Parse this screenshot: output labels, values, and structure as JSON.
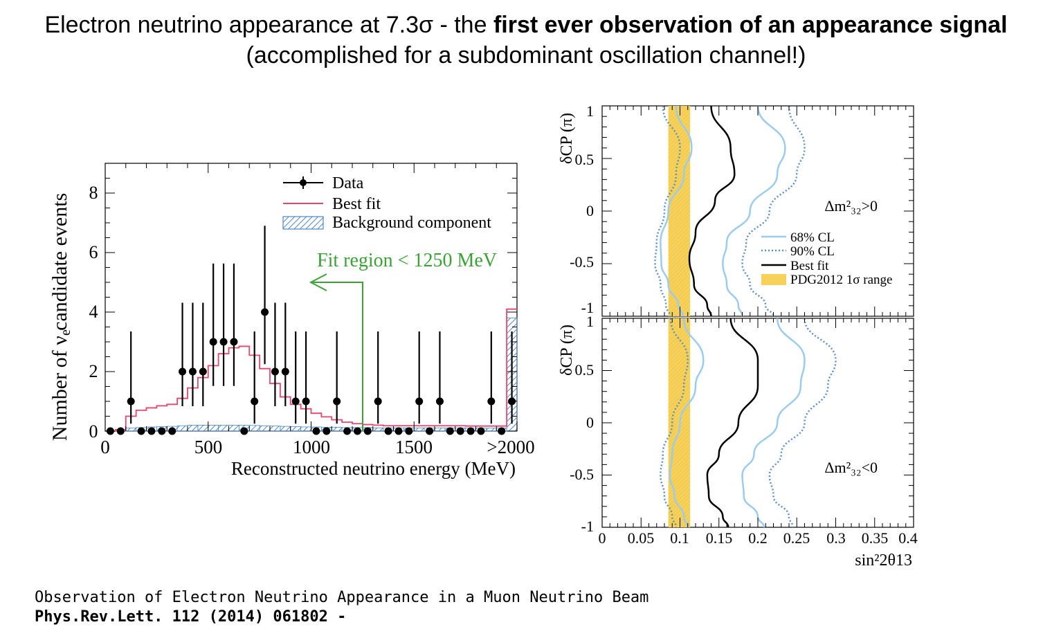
{
  "slide": {
    "title_line1_plain": "Electron neutrino appearance at 7.3σ - the ",
    "title_line1_bold": "first ever observation of an appearance signal",
    "title_line2": "(accomplished for a subdominant oscillation channel!)",
    "caption_line1": "Observation of Electron Neutrino Appearance in a Muon Neutrino Beam",
    "caption_line2": "Phys.Rev.Lett. 112 (2014) 061802 -"
  },
  "colors": {
    "best_fit_hist": "#e8456e",
    "background_hatch": "#4a86c8",
    "fit_region": "#3aa235",
    "cl68": "#9ccbf0",
    "cl90": "#5b8fc7",
    "pdg_band": "#f6d25a"
  },
  "chart_data": [
    {
      "type": "bar",
      "xlabel": "Reconstructed neutrino energy (MeV)",
      "ylabel": "Number of ν candidate events",
      "ylabel_sub": "e",
      "xlim": [
        0,
        2000
      ],
      "ylim": [
        0,
        9
      ],
      "x_ticks": [
        "0",
        "500",
        "1000",
        "1500",
        ">2000"
      ],
      "y_ticks": [
        "0",
        "2",
        "4",
        "6",
        "8"
      ],
      "legend": [
        "Data",
        "Best fit",
        "Background component"
      ],
      "legend_position": "top-right",
      "annotation": "Fit region < 1250 MeV",
      "bin_width": 50,
      "data": {
        "x": [
          25,
          75,
          125,
          175,
          225,
          275,
          325,
          375,
          425,
          475,
          525,
          575,
          625,
          675,
          725,
          775,
          825,
          875,
          925,
          975,
          1025,
          1075,
          1125,
          1175,
          1225,
          1275,
          1325,
          1375,
          1425,
          1475,
          1525,
          1575,
          1625,
          1675,
          1725,
          1775,
          1825,
          1875,
          1925,
          1975
        ],
        "y": [
          0,
          0,
          1,
          0,
          0,
          0,
          0,
          2,
          2,
          2,
          3,
          3,
          3,
          0,
          1,
          4,
          2,
          2,
          1,
          1,
          0,
          0,
          1,
          0,
          0,
          0,
          1,
          0,
          0,
          0,
          1,
          0,
          1,
          0,
          0,
          0,
          0,
          1,
          0,
          1
        ]
      },
      "best_fit": [
        0,
        0.05,
        0.5,
        0.7,
        0.78,
        0.85,
        0.9,
        1.1,
        1.45,
        1.8,
        2.2,
        2.6,
        2.8,
        2.85,
        2.55,
        2.1,
        1.6,
        1.15,
        0.9,
        0.75,
        0.6,
        0.48,
        0.38,
        0.3,
        0.25,
        0.22,
        0.2,
        0.18,
        0.18,
        0.18,
        0.18,
        0.18,
        0.18,
        0.18,
        0.18,
        0.17,
        0.17,
        0.17,
        0.17,
        4.1
      ],
      "background": [
        0,
        0.05,
        0.1,
        0.12,
        0.14,
        0.15,
        0.16,
        0.18,
        0.2,
        0.2,
        0.2,
        0.2,
        0.2,
        0.2,
        0.19,
        0.18,
        0.17,
        0.16,
        0.15,
        0.14,
        0.14,
        0.13,
        0.13,
        0.12,
        0.12,
        0.12,
        0.11,
        0.11,
        0.11,
        0.11,
        0.11,
        0.11,
        0.11,
        0.11,
        0.11,
        0.1,
        0.1,
        0.1,
        0.1,
        3.8
      ]
    },
    {
      "type": "line",
      "panel": "normal hierarchy",
      "label": "Δm²₃₂>0",
      "xlabel": "sin²2θ13",
      "ylabel": "δCP (π)",
      "xlim": [
        0,
        0.4
      ],
      "ylim": [
        -1,
        1
      ],
      "x_ticks": [
        "0",
        "0.05",
        "0.1",
        "0.15",
        "0.2",
        "0.25",
        "0.3",
        "0.35",
        "0.4"
      ],
      "y_ticks": [
        "1",
        "0.5",
        "0",
        "-0.5",
        "-1"
      ],
      "legend": [
        "68% CL",
        "90% CL",
        "Best fit",
        "PDG2012 1σ range"
      ],
      "legend_position": "right",
      "pdg_band": [
        0.085,
        0.113
      ],
      "series": [
        {
          "name": "Best fit",
          "x": [
            0.14,
            0.165,
            0.17,
            0.145,
            0.12,
            0.112,
            0.118,
            0.135,
            0.14
          ],
          "y": [
            1,
            0.6,
            0.35,
            0.1,
            -0.2,
            -0.45,
            -0.7,
            -0.9,
            -1
          ]
        },
        {
          "name": "68% CL",
          "x": [
            0.095,
            0.115,
            0.105,
            0.085,
            0.075,
            0.076,
            0.085,
            0.098,
            0.104
          ],
          "y": [
            1,
            0.6,
            0.35,
            0.0,
            -0.3,
            -0.5,
            -0.7,
            -0.9,
            -1
          ]
        },
        {
          "name": "68% CL",
          "x": [
            0.2,
            0.235,
            0.225,
            0.19,
            0.16,
            0.155,
            0.16,
            0.175,
            0.18
          ],
          "y": [
            1,
            0.6,
            0.35,
            0.0,
            -0.3,
            -0.5,
            -0.7,
            -0.9,
            -1
          ]
        },
        {
          "name": "90% CL",
          "x": [
            0.078,
            0.1,
            0.095,
            0.08,
            0.07,
            0.068,
            0.075,
            0.082,
            0.087
          ],
          "y": [
            1,
            0.6,
            0.35,
            0.0,
            -0.3,
            -0.5,
            -0.7,
            -0.9,
            -1
          ]
        },
        {
          "name": "90% CL",
          "x": [
            0.24,
            0.26,
            0.25,
            0.215,
            0.185,
            0.18,
            0.19,
            0.21,
            0.22
          ],
          "y": [
            1,
            0.6,
            0.35,
            0.0,
            -0.3,
            -0.5,
            -0.7,
            -0.9,
            -1
          ]
        }
      ]
    },
    {
      "type": "line",
      "panel": "inverted hierarchy",
      "label": "Δm²₃₂<0",
      "xlabel": "sin²2θ13",
      "ylabel": "δCP (π)",
      "xlim": [
        0,
        0.4
      ],
      "ylim": [
        -1,
        1
      ],
      "x_ticks": [
        "0",
        "0.05",
        "0.1",
        "0.15",
        "0.2",
        "0.25",
        "0.3",
        "0.35",
        "0.4"
      ],
      "y_ticks": [
        "1",
        "0.5",
        "0",
        "-0.5",
        "-1"
      ],
      "pdg_band": [
        0.085,
        0.113
      ],
      "series": [
        {
          "name": "Best fit",
          "x": [
            0.165,
            0.2,
            0.2,
            0.175,
            0.15,
            0.135,
            0.137,
            0.155,
            0.162
          ],
          "y": [
            1,
            0.6,
            0.35,
            0.0,
            -0.3,
            -0.5,
            -0.7,
            -0.9,
            -1
          ]
        },
        {
          "name": "68% CL",
          "x": [
            0.105,
            0.13,
            0.12,
            0.1,
            0.09,
            0.087,
            0.093,
            0.105,
            0.11
          ],
          "y": [
            1,
            0.6,
            0.35,
            0.0,
            -0.3,
            -0.5,
            -0.7,
            -0.9,
            -1
          ]
        },
        {
          "name": "68% CL",
          "x": [
            0.225,
            0.26,
            0.255,
            0.225,
            0.195,
            0.18,
            0.182,
            0.2,
            0.208
          ],
          "y": [
            1,
            0.6,
            0.35,
            0.0,
            -0.3,
            -0.5,
            -0.7,
            -0.9,
            -1
          ]
        },
        {
          "name": "90% CL",
          "x": [
            0.088,
            0.11,
            0.105,
            0.09,
            0.078,
            0.075,
            0.08,
            0.09,
            0.095
          ],
          "y": [
            1,
            0.6,
            0.35,
            0.0,
            -0.3,
            -0.5,
            -0.7,
            -0.9,
            -1
          ]
        },
        {
          "name": "90% CL",
          "x": [
            0.26,
            0.3,
            0.29,
            0.26,
            0.23,
            0.215,
            0.22,
            0.24,
            0.245
          ],
          "y": [
            1,
            0.6,
            0.35,
            0.0,
            -0.3,
            -0.5,
            -0.7,
            -0.9,
            -1
          ]
        }
      ]
    }
  ]
}
